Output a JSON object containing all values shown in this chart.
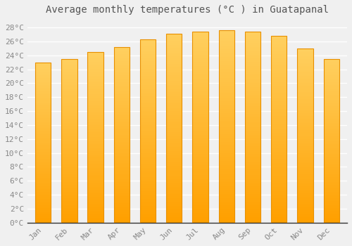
{
  "title": "Average monthly temperatures (°C ) in Guatapanal",
  "months": [
    "Jan",
    "Feb",
    "Mar",
    "Apr",
    "May",
    "Jun",
    "Jul",
    "Aug",
    "Sep",
    "Oct",
    "Nov",
    "Dec"
  ],
  "values": [
    23.0,
    23.5,
    24.5,
    25.2,
    26.3,
    27.1,
    27.4,
    27.6,
    27.4,
    26.8,
    25.0,
    23.5
  ],
  "bar_color_bottom": "#FFA000",
  "bar_color_top": "#FFD060",
  "bar_edge_color": "#E89000",
  "ylim": [
    0,
    29
  ],
  "yticks": [
    0,
    2,
    4,
    6,
    8,
    10,
    12,
    14,
    16,
    18,
    20,
    22,
    24,
    26,
    28
  ],
  "background_color": "#f0f0f0",
  "plot_bg_color": "#f0f0f0",
  "grid_color": "#ffffff",
  "title_fontsize": 10,
  "tick_fontsize": 8,
  "tick_color": "#888888",
  "title_color": "#555555"
}
